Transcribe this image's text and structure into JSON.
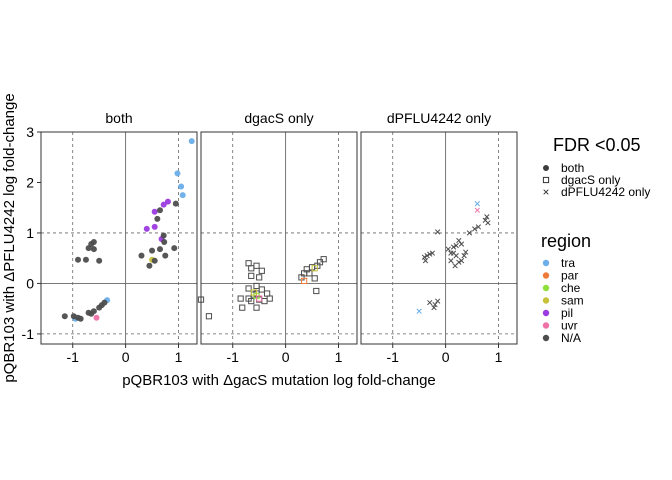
{
  "chart_data": {
    "type": "scatter",
    "xlabel": "pQBR103 with ΔgacS mutation log fold-change",
    "ylabel": "pQBR103 with ΔPFLU4242 log fold-change",
    "xlim": [
      -1.6,
      1.35
    ],
    "ylim": [
      -1.2,
      3.0
    ],
    "x_ticks": [
      -1,
      0,
      1
    ],
    "x_tick_labels": [
      "-1",
      "0",
      "1"
    ],
    "y_ticks": [
      -1,
      0,
      1,
      2,
      3
    ],
    "y_tick_labels": [
      "-1",
      "0",
      "1",
      "2",
      "3"
    ],
    "zero_lines": {
      "x": 0,
      "y": 0
    },
    "threshold_lines": {
      "x": [
        -1,
        1
      ],
      "y": [
        -1,
        1
      ]
    },
    "grid": false,
    "panels": [
      "both",
      "dgacS only",
      "dPFLU4242 only"
    ],
    "legend_shape": {
      "title": "FDR <0.05",
      "items": [
        {
          "label": "both",
          "shape": "circle"
        },
        {
          "label": "dgacS only",
          "shape": "square"
        },
        {
          "label": "dPFLU4242 only",
          "shape": "cross"
        }
      ]
    },
    "legend_region": {
      "title": "region",
      "items": [
        {
          "label": "tra",
          "color": "#6aaeea"
        },
        {
          "label": "par",
          "color": "#ef7b3a"
        },
        {
          "label": "che",
          "color": "#8fe03a"
        },
        {
          "label": "sam",
          "color": "#c8c23a"
        },
        {
          "label": "pil",
          "color": "#9b3ae0"
        },
        {
          "label": "uvr",
          "color": "#ee72a8"
        },
        {
          "label": "N/A",
          "color": "#4d4d4d"
        }
      ]
    },
    "series": [
      {
        "panel": 0,
        "shape": "circle",
        "points": [
          [
            1.25,
            2.82,
            "tra"
          ],
          [
            0.98,
            2.18,
            "tra"
          ],
          [
            1.05,
            1.92,
            "tra"
          ],
          [
            1.08,
            1.75,
            "tra"
          ],
          [
            -0.35,
            -0.33,
            "tra"
          ],
          [
            -0.95,
            -0.7,
            "tra"
          ],
          [
            0.8,
            1.62,
            "pil"
          ],
          [
            0.72,
            1.56,
            "pil"
          ],
          [
            0.55,
            1.42,
            "pil"
          ],
          [
            0.4,
            1.08,
            "pil"
          ],
          [
            0.55,
            1.12,
            "pil"
          ],
          [
            0.68,
            0.88,
            "pil"
          ],
          [
            0.5,
            0.47,
            "sam"
          ],
          [
            -0.55,
            -0.68,
            "uvr"
          ],
          [
            0.95,
            1.58,
            "N/A"
          ],
          [
            0.65,
            1.45,
            "N/A"
          ],
          [
            0.6,
            1.28,
            "N/A"
          ],
          [
            0.72,
            0.95,
            "N/A"
          ],
          [
            0.73,
            0.82,
            "N/A"
          ],
          [
            0.5,
            0.65,
            "N/A"
          ],
          [
            0.65,
            0.68,
            "N/A"
          ],
          [
            0.92,
            0.7,
            "N/A"
          ],
          [
            0.75,
            0.55,
            "N/A"
          ],
          [
            0.3,
            0.55,
            "N/A"
          ],
          [
            0.45,
            0.35,
            "N/A"
          ],
          [
            0.55,
            0.45,
            "N/A"
          ],
          [
            -0.6,
            0.82,
            "N/A"
          ],
          [
            -0.65,
            0.78,
            "N/A"
          ],
          [
            -0.7,
            0.7,
            "N/A"
          ],
          [
            -0.6,
            0.68,
            "N/A"
          ],
          [
            -0.9,
            0.47,
            "N/A"
          ],
          [
            -0.75,
            0.47,
            "N/A"
          ],
          [
            -0.5,
            0.45,
            "N/A"
          ],
          [
            -1.15,
            -0.65,
            "N/A"
          ],
          [
            -0.98,
            -0.65,
            "N/A"
          ],
          [
            -0.9,
            -0.68,
            "N/A"
          ],
          [
            -0.85,
            -0.7,
            "N/A"
          ],
          [
            -0.7,
            -0.58,
            "N/A"
          ],
          [
            -0.6,
            -0.55,
            "N/A"
          ],
          [
            -0.65,
            -0.6,
            "N/A"
          ],
          [
            -0.5,
            -0.48,
            "N/A"
          ],
          [
            -0.45,
            -0.43,
            "N/A"
          ],
          [
            -0.4,
            -0.38,
            "N/A"
          ]
        ]
      },
      {
        "panel": 1,
        "shape": "square",
        "points": [
          [
            -1.6,
            -0.32,
            "N/A"
          ],
          [
            -1.45,
            -0.65,
            "N/A"
          ],
          [
            -0.85,
            -0.3,
            "N/A"
          ],
          [
            -0.82,
            -0.48,
            "N/A"
          ],
          [
            -0.7,
            0.4,
            "N/A"
          ],
          [
            -0.65,
            0.3,
            "N/A"
          ],
          [
            -0.55,
            0.35,
            "N/A"
          ],
          [
            -0.45,
            0.25,
            "N/A"
          ],
          [
            -0.65,
            0.15,
            "N/A"
          ],
          [
            -0.5,
            0.12,
            "N/A"
          ],
          [
            -0.7,
            -0.1,
            "N/A"
          ],
          [
            -0.55,
            -0.05,
            "N/A"
          ],
          [
            -0.45,
            -0.12,
            "N/A"
          ],
          [
            -0.35,
            -0.2,
            "N/A"
          ],
          [
            -0.3,
            -0.3,
            "N/A"
          ],
          [
            -0.7,
            -0.3,
            "N/A"
          ],
          [
            -0.65,
            -0.35,
            "N/A"
          ],
          [
            -0.55,
            -0.48,
            "N/A"
          ],
          [
            -0.4,
            -0.35,
            "N/A"
          ],
          [
            -0.6,
            -0.22,
            "N/A"
          ],
          [
            -0.5,
            -0.32,
            "N/A"
          ],
          [
            -0.55,
            -0.2,
            "N/A"
          ],
          [
            0.3,
            0.12,
            "N/A"
          ],
          [
            0.35,
            0.2,
            "N/A"
          ],
          [
            0.4,
            0.28,
            "N/A"
          ],
          [
            0.5,
            0.32,
            "N/A"
          ],
          [
            0.6,
            0.35,
            "N/A"
          ],
          [
            0.65,
            0.42,
            "N/A"
          ],
          [
            0.72,
            0.48,
            "N/A"
          ],
          [
            0.45,
            0.2,
            "N/A"
          ],
          [
            0.55,
            0.1,
            "N/A"
          ],
          [
            0.58,
            -0.15,
            "N/A"
          ],
          [
            0.35,
            0.05,
            "par"
          ],
          [
            -0.55,
            -0.25,
            "che"
          ],
          [
            -0.6,
            -0.18,
            "sam"
          ],
          [
            0.55,
            0.3,
            "sam"
          ],
          [
            -0.5,
            -0.3,
            "uvr"
          ]
        ]
      },
      {
        "panel": 2,
        "shape": "cross",
        "points": [
          [
            0.6,
            1.58,
            "tra"
          ],
          [
            -0.5,
            -0.55,
            "tra"
          ],
          [
            0.6,
            1.45,
            "uvr"
          ],
          [
            0.05,
            0.68,
            "N/A"
          ],
          [
            0.15,
            0.72,
            "N/A"
          ],
          [
            0.25,
            0.85,
            "N/A"
          ],
          [
            0.3,
            0.78,
            "N/A"
          ],
          [
            0.45,
            1.0,
            "N/A"
          ],
          [
            0.55,
            1.08,
            "N/A"
          ],
          [
            0.62,
            1.12,
            "N/A"
          ],
          [
            0.75,
            1.25,
            "N/A"
          ],
          [
            0.78,
            1.32,
            "N/A"
          ],
          [
            0.8,
            1.2,
            "N/A"
          ],
          [
            -0.15,
            1.02,
            "N/A"
          ],
          [
            0.1,
            0.6,
            "N/A"
          ],
          [
            0.2,
            0.55,
            "N/A"
          ],
          [
            0.1,
            0.45,
            "N/A"
          ],
          [
            0.35,
            0.55,
            "N/A"
          ],
          [
            0.3,
            0.45,
            "N/A"
          ],
          [
            0.38,
            0.62,
            "N/A"
          ],
          [
            0.2,
            0.75,
            "N/A"
          ],
          [
            0.15,
            0.6,
            "N/A"
          ],
          [
            -0.35,
            0.55,
            "N/A"
          ],
          [
            -0.4,
            0.52,
            "N/A"
          ],
          [
            -0.3,
            0.58,
            "N/A"
          ],
          [
            -0.38,
            0.45,
            "N/A"
          ],
          [
            -0.25,
            0.6,
            "N/A"
          ],
          [
            0.25,
            0.42,
            "N/A"
          ],
          [
            0.18,
            0.35,
            "N/A"
          ],
          [
            -0.3,
            -0.38,
            "N/A"
          ],
          [
            -0.2,
            -0.42,
            "N/A"
          ],
          [
            -0.15,
            -0.35,
            "N/A"
          ],
          [
            -0.22,
            -0.48,
            "N/A"
          ]
        ]
      }
    ]
  }
}
